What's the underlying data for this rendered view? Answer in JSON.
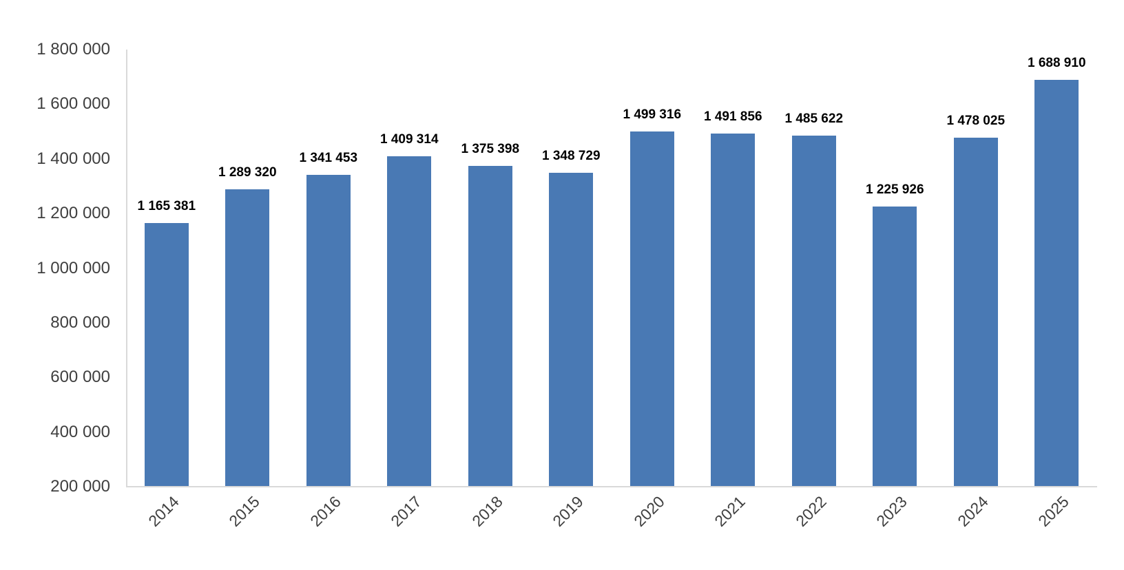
{
  "chart_data": {
    "type": "bar",
    "title": "",
    "xlabel": "",
    "ylabel": "",
    "categories": [
      "2014",
      "2015",
      "2016",
      "2017",
      "2018",
      "2019",
      "2020",
      "2021",
      "2022",
      "2023",
      "2024",
      "2025"
    ],
    "values": [
      1165381,
      1289320,
      1341453,
      1409314,
      1375398,
      1348729,
      1499316,
      1491856,
      1485622,
      1225926,
      1478025,
      1688910
    ],
    "data_labels": [
      "1 165 381",
      "1 289 320",
      "1 341 453",
      "1 409 314",
      "1 375 398",
      "1 348 729",
      "1 499 316",
      "1 491 856",
      "1 485 622",
      "1 225 926",
      "1 478 025",
      "1 688 910"
    ],
    "ylim": [
      200000,
      1800000
    ],
    "ytick_step": 200000,
    "ytick_labels": [
      "1 800 000",
      "1 600 000",
      "1 400 000",
      "1 200 000",
      "1 000 000",
      "800 000",
      "600 000",
      "400 000",
      "200 000"
    ],
    "grid": false,
    "legend": "none",
    "x_labels_rotation_deg": -45,
    "bar_color": "#4979B4",
    "axis_line_color": "#D9D9D9",
    "tick_label_color": "#3F3F3F",
    "data_label_color": "#000000",
    "background_color": "#FFFFFF"
  }
}
